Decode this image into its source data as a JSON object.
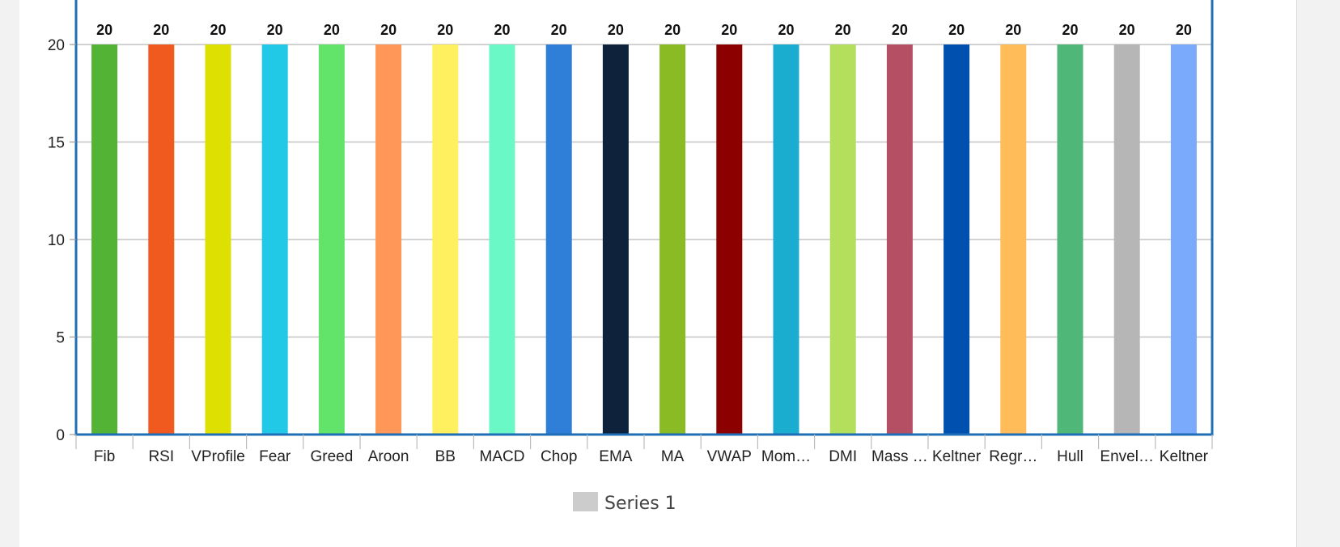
{
  "chart_data": {
    "type": "bar",
    "categories": [
      "Fib",
      "RSI",
      "VProfile",
      "Fear",
      "Greed",
      "Aroon",
      "BB",
      "MACD",
      "Chop",
      "EMA",
      "MA",
      "VWAP",
      "Mom…",
      "DMI",
      "Mass …",
      "Keltner",
      "Regr…",
      "Hull",
      "Envel…",
      "Keltner"
    ],
    "series": [
      {
        "name": "Series 1",
        "values": [
          20,
          20,
          20,
          20,
          20,
          20,
          20,
          20,
          20,
          20,
          20,
          20,
          20,
          20,
          20,
          20,
          20,
          20,
          20,
          20
        ],
        "data_labels": [
          "20",
          "20",
          "20",
          "20",
          "20",
          "20",
          "20",
          "20",
          "20",
          "20",
          "20",
          "20",
          "20",
          "20",
          "20",
          "20",
          "20",
          "20",
          "20",
          "20"
        ],
        "colors": [
          "#52b334",
          "#f05a1e",
          "#dde000",
          "#22c9e6",
          "#62e46a",
          "#ff9758",
          "#fff060",
          "#6af8c6",
          "#2f7ed8",
          "#0e233b",
          "#8aba24",
          "#8c0000",
          "#1aadcf",
          "#b4df5c",
          "#b54f64",
          "#0050b0",
          "#ffbc58",
          "#4fb878",
          "#b6b6b6",
          "#7aaafb"
        ]
      }
    ],
    "yticks": [
      "0",
      "5",
      "10",
      "15",
      "20"
    ],
    "ylim": [
      0,
      22
    ],
    "grid": true,
    "legend": {
      "position": "bottom",
      "entries": [
        "Series 1"
      ],
      "swatch_color": "#cccccc"
    },
    "frame_color": "#1f6fb6"
  }
}
